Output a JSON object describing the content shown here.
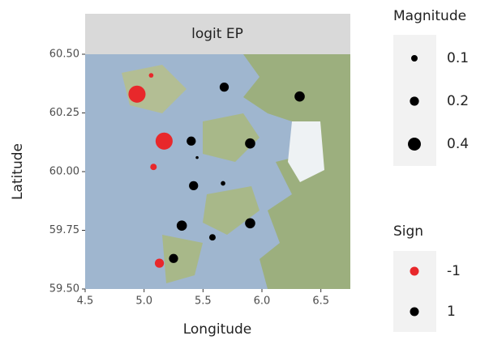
{
  "chart_data": {
    "type": "scatter",
    "title": "logit EP",
    "xlabel": "Longitude",
    "ylabel": "Latitude",
    "xlim": [
      4.5,
      6.75
    ],
    "ylim": [
      59.5,
      60.5
    ],
    "xticks": [
      4.5,
      {
        "value": 5.0,
        "label": "5.0"
      },
      5.5,
      {
        "value": 6.0,
        "label": "6.0"
      },
      6.5
    ],
    "yticks": [
      {
        "value": 59.5,
        "label": "59.50"
      },
      {
        "value": 59.75,
        "label": "59.75"
      },
      {
        "value": 60.0,
        "label": "60.00"
      },
      {
        "value": 60.25,
        "label": "60.25"
      },
      {
        "value": 60.5,
        "label": "60.50"
      }
    ],
    "size_legend": {
      "title": "Magnitude",
      "values": [
        0.1,
        0.2,
        0.4
      ]
    },
    "color_legend_title": "Sign",
    "series": [
      {
        "name": "-1",
        "color": "#e8282b",
        "x": [
          4.94,
          5.06,
          5.17,
          5.08,
          5.13
        ],
        "y": [
          60.33,
          60.41,
          60.13,
          60.02,
          59.61
        ],
        "size": [
          0.7,
          0.05,
          0.7,
          0.1,
          0.2
        ]
      },
      {
        "name": "1",
        "color": "#000000",
        "x": [
          5.68,
          6.32,
          5.4,
          5.45,
          5.9,
          5.42,
          5.67,
          5.32,
          5.9,
          5.58,
          5.25
        ],
        "y": [
          60.36,
          60.32,
          60.13,
          60.06,
          60.12,
          59.94,
          59.95,
          59.77,
          59.78,
          59.72,
          59.63
        ],
        "size": [
          0.2,
          0.25,
          0.2,
          0.02,
          0.25,
          0.2,
          0.05,
          0.25,
          0.25,
          0.1,
          0.2
        ]
      }
    ]
  }
}
